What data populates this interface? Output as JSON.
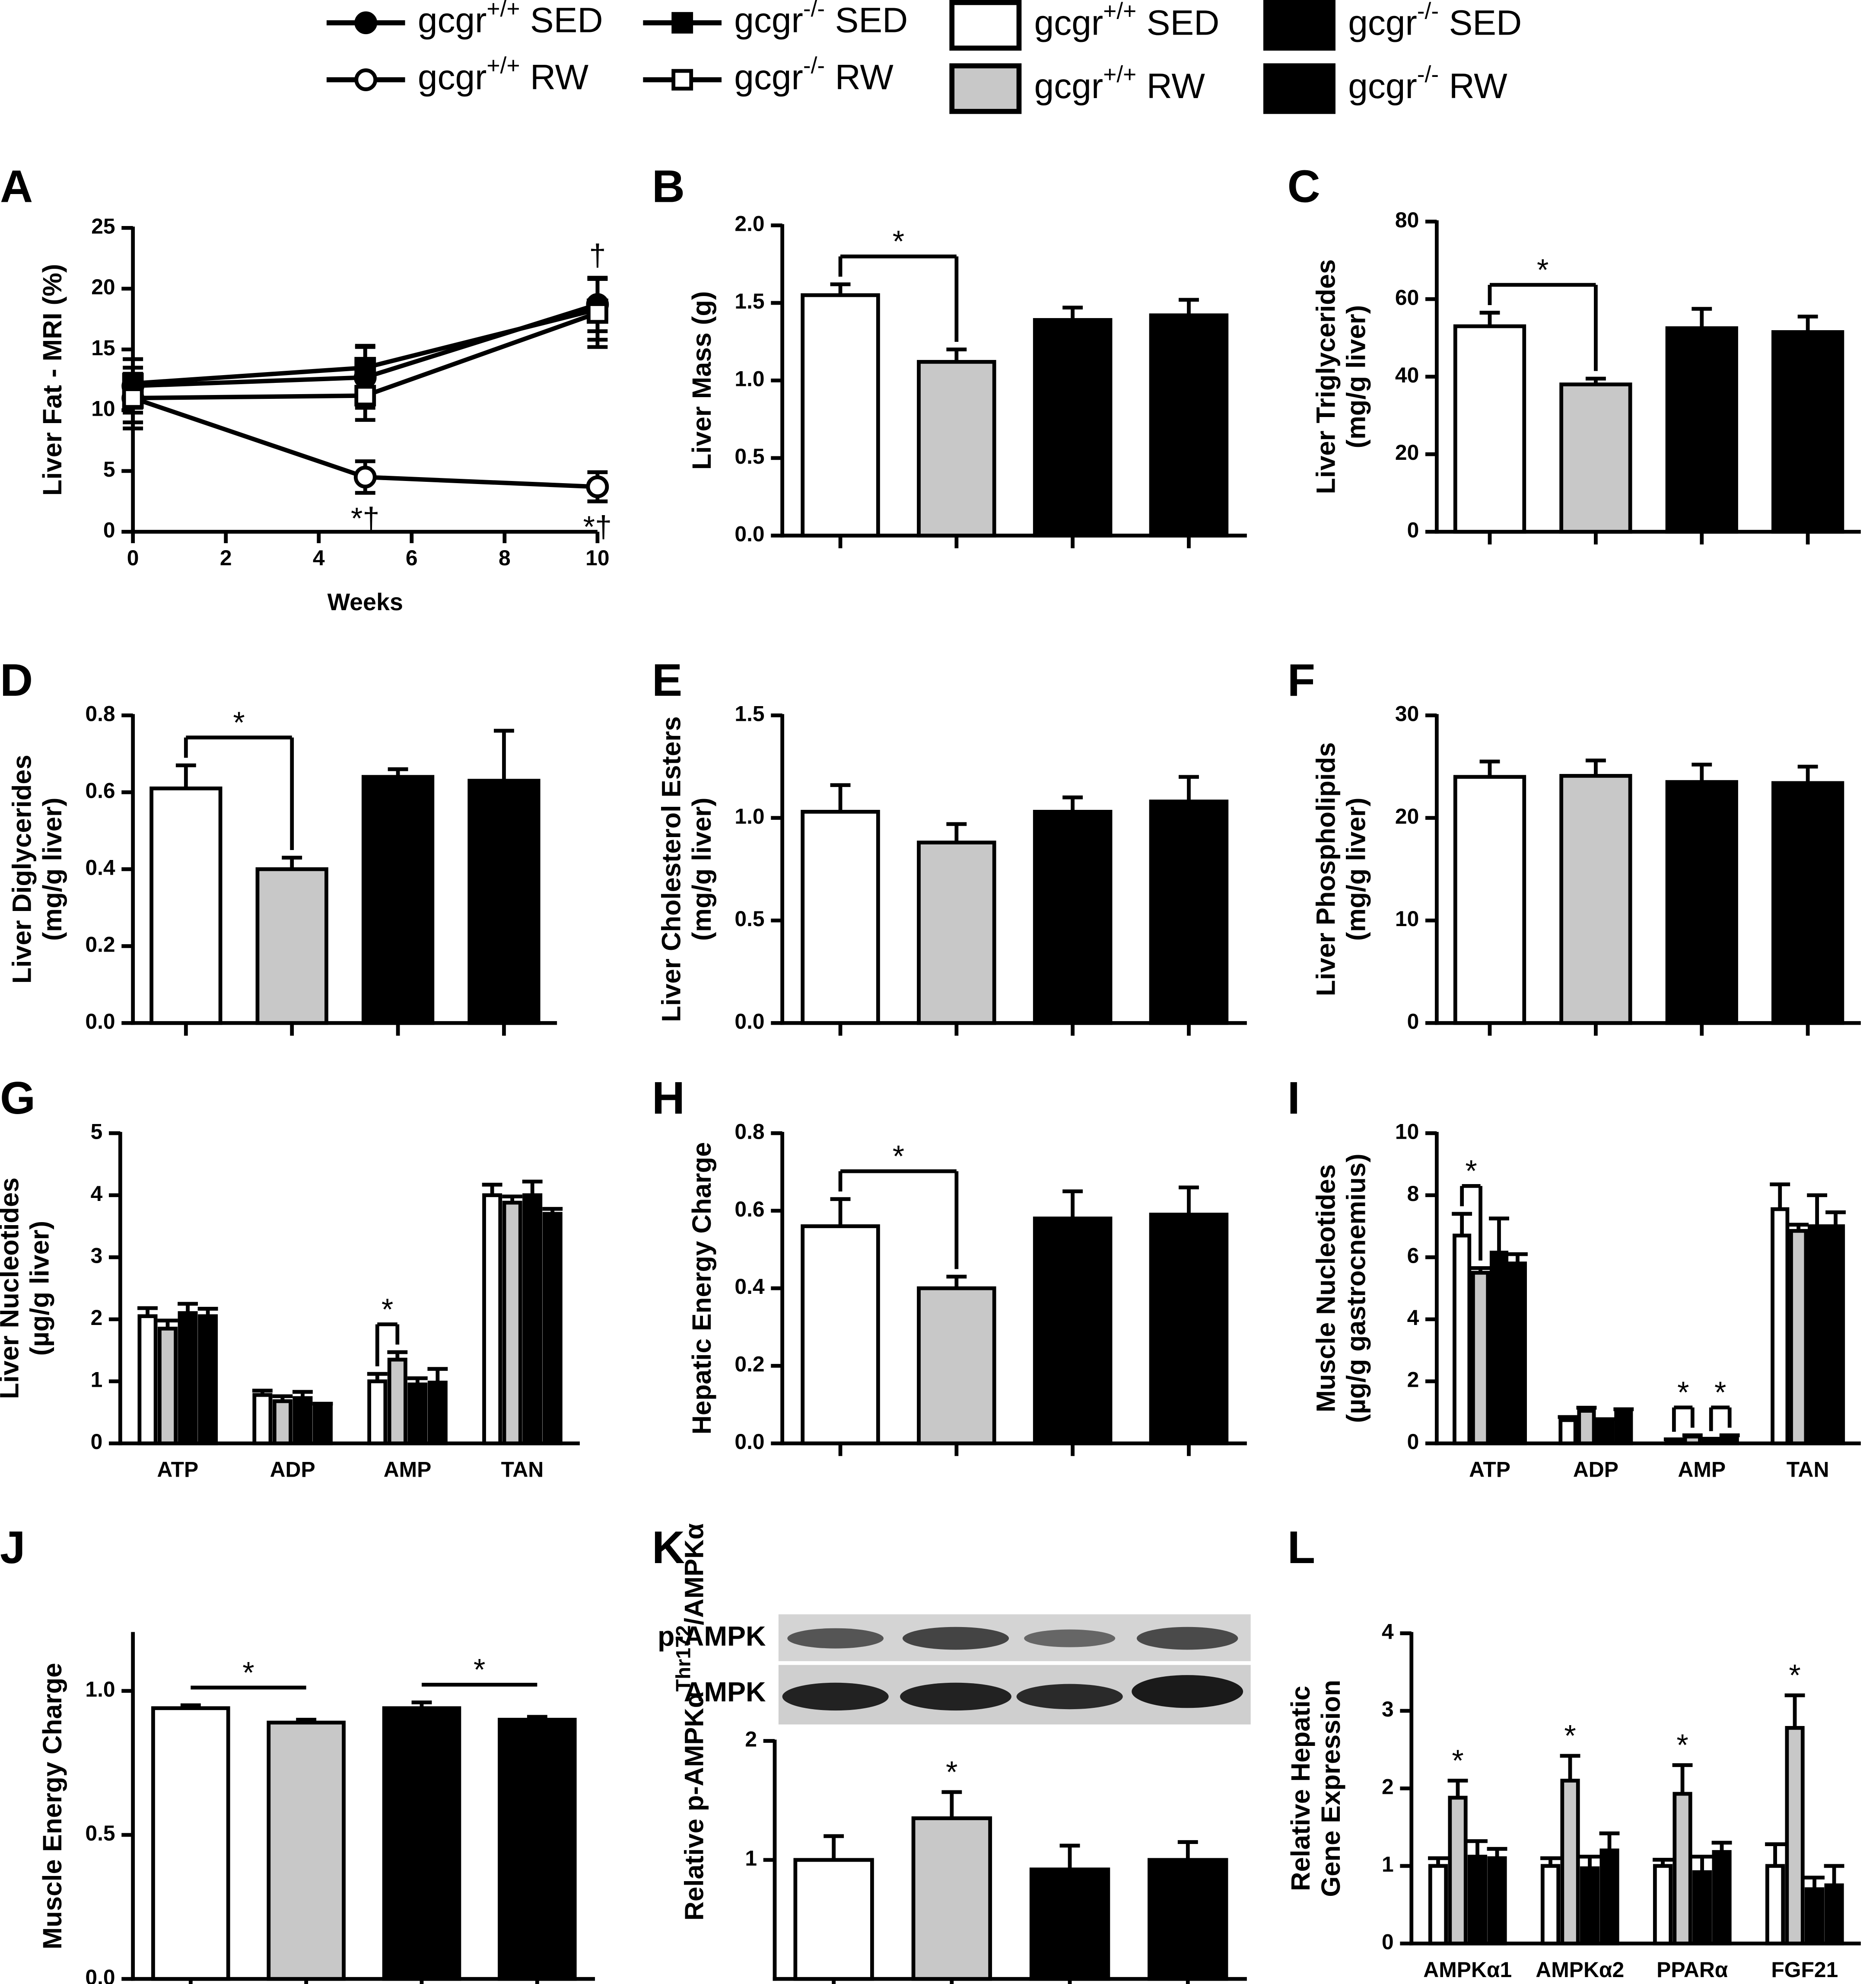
{
  "legend": {
    "bars": [
      {
        "base": "gcgr",
        "sup": "+/+",
        "cond": "SED",
        "fill": "#ffffff"
      },
      {
        "base": "gcgr",
        "sup": "+/+",
        "cond": "RW",
        "fill": "#c8c8c8"
      },
      {
        "base": "gcgr",
        "sup": "-/-",
        "cond": "SED",
        "fill": "#000000"
      },
      {
        "base": "gcgr",
        "sup": "-/-",
        "cond": "RW",
        "fill": "#000000"
      }
    ]
  },
  "chart_data": [
    {
      "type": "line",
      "panel": "A",
      "y_label": [
        "Liver Fat - MRI (%)"
      ],
      "x_label": "Weeks",
      "x": [
        0,
        5,
        10
      ],
      "xlim": [
        0,
        10
      ],
      "xticks": [
        0,
        2,
        4,
        6,
        8,
        10
      ],
      "ylim": [
        0,
        25
      ],
      "yticks": [
        0,
        5,
        10,
        15,
        20,
        25
      ],
      "series": [
        {
          "name": {
            "base": "gcgr",
            "sup": "+/+",
            "cond": "SED"
          },
          "color": "#000000",
          "marker": "circle",
          "filled": true,
          "values": [
            12,
            12.7,
            18.7
          ],
          "errors": [
            2.2,
            2.5,
            2.2
          ]
        },
        {
          "name": {
            "base": "gcgr",
            "sup": "-/-",
            "cond": "SED"
          },
          "color": "#000000",
          "marker": "square",
          "filled": true,
          "values": [
            12.2,
            13.5,
            18.3
          ],
          "errors": [
            2,
            1.8,
            2.5
          ]
        },
        {
          "name": {
            "base": "gcgr",
            "sup": "+/+",
            "cond": "RW"
          },
          "color": "#000000",
          "marker": "circle",
          "filled": false,
          "values": [
            11,
            4.5,
            3.7
          ],
          "errors": [
            2,
            1.3,
            1.2
          ]
        },
        {
          "name": {
            "base": "gcgr",
            "sup": "-/-",
            "cond": "RW"
          },
          "color": "#000000",
          "marker": "square",
          "filled": false,
          "values": [
            11,
            11.2,
            18
          ],
          "errors": [
            2.5,
            2,
            2.8
          ]
        }
      ],
      "annotations": [
        {
          "text": "†",
          "x": 10,
          "series": 0
        },
        {
          "text": "*†",
          "x": 5,
          "series": 2
        },
        {
          "text": "*†",
          "x": 10,
          "series": 2
        }
      ]
    },
    {
      "type": "bar",
      "panel": "B",
      "y_label": [
        "Liver Mass (g)"
      ],
      "ylim": [
        0,
        2
      ],
      "yticks": [
        {
          "value": 0,
          "label": "0.0"
        },
        0.5,
        {
          "value": 1,
          "label": "1.0"
        },
        1.5,
        {
          "value": 2,
          "label": "2.0"
        }
      ],
      "values": [
        1.55,
        1.12,
        1.39,
        1.42
      ],
      "errors": [
        0.07,
        0.08,
        0.08,
        0.1
      ],
      "significance": [
        {
          "label": "*",
          "groups": [
            0,
            1
          ]
        }
      ]
    },
    {
      "type": "bar",
      "panel": "C",
      "y_label": [
        "Liver Triglycerides",
        "(mg/g liver)"
      ],
      "ylim": [
        0,
        80
      ],
      "yticks": [
        0,
        20,
        40,
        60,
        80
      ],
      "values": [
        53,
        38,
        52.5,
        51.5
      ],
      "errors": [
        3.5,
        1.5,
        5,
        4
      ],
      "significance": [
        {
          "label": "*",
          "groups": [
            0,
            1
          ]
        }
      ]
    },
    {
      "type": "bar",
      "panel": "D",
      "y_label": [
        "Liver Diglycerides",
        "(mg/g liver)"
      ],
      "ylim": [
        0,
        0.8
      ],
      "yticks": [
        {
          "value": 0,
          "label": "0.0"
        },
        0.2,
        0.4,
        0.6,
        0.8
      ],
      "values": [
        0.61,
        0.4,
        0.64,
        0.63
      ],
      "errors": [
        0.06,
        0.03,
        0.02,
        0.13
      ],
      "significance": [
        {
          "label": "*",
          "groups": [
            0,
            1
          ]
        }
      ]
    },
    {
      "type": "bar",
      "panel": "E",
      "y_label": [
        "Liver Cholesterol Esters",
        "(mg/g liver)"
      ],
      "ylim": [
        0,
        1.5
      ],
      "yticks": [
        {
          "value": 0,
          "label": "0.0"
        },
        0.5,
        {
          "value": 1,
          "label": "1.0"
        },
        1.5
      ],
      "values": [
        1.03,
        0.88,
        1.03,
        1.08
      ],
      "errors": [
        0.13,
        0.09,
        0.07,
        0.12
      ]
    },
    {
      "type": "bar",
      "panel": "F",
      "y_label": [
        "Liver Phospholipids",
        "(mg/g liver)"
      ],
      "ylim": [
        0,
        30
      ],
      "yticks": [
        0,
        10,
        20,
        30
      ],
      "values": [
        24,
        24.1,
        23.5,
        23.4
      ],
      "errors": [
        1.5,
        1.5,
        1.7,
        1.6
      ]
    },
    {
      "type": "grouped_bar",
      "panel": "G",
      "y_label": [
        "Liver Nucleotides",
        "(µg/g liver)"
      ],
      "ylim": [
        0,
        5
      ],
      "yticks": [
        0,
        1,
        2,
        3,
        4,
        5
      ],
      "categories": [
        "ATP",
        "ADP",
        "AMP",
        "TAN"
      ],
      "series": [
        {
          "values": [
            2.05,
            0.78,
            1.0,
            4.0
          ],
          "errors": [
            0.13,
            0.07,
            0.12,
            0.17
          ]
        },
        {
          "values": [
            1.85,
            0.68,
            1.35,
            3.88
          ],
          "errors": [
            0.13,
            0.08,
            0.12,
            0.1
          ]
        },
        {
          "values": [
            2.1,
            0.73,
            0.95,
            4.0
          ],
          "errors": [
            0.15,
            0.1,
            0.1,
            0.22
          ]
        },
        {
          "values": [
            2.05,
            0.62,
            0.98,
            3.7
          ],
          "errors": [
            0.12,
            0.02,
            0.22,
            0.08
          ]
        }
      ],
      "significance": [
        {
          "label": "*",
          "category": 2,
          "groups": [
            0,
            1
          ]
        }
      ]
    },
    {
      "type": "bar",
      "panel": "H",
      "y_label": [
        "Hepatic Energy Charge"
      ],
      "ylim": [
        0,
        0.8
      ],
      "yticks": [
        {
          "value": 0,
          "label": "0.0"
        },
        0.2,
        0.4,
        0.6,
        0.8
      ],
      "values": [
        0.56,
        0.4,
        0.58,
        0.59
      ],
      "errors": [
        0.07,
        0.03,
        0.07,
        0.07
      ],
      "significance": [
        {
          "label": "*",
          "groups": [
            0,
            1
          ]
        }
      ]
    },
    {
      "type": "grouped_bar",
      "panel": "I",
      "y_label": [
        "Muscle Nucleotides",
        "(µg/g gastrocnemius)"
      ],
      "ylim": [
        0,
        10
      ],
      "yticks": [
        0,
        2,
        4,
        6,
        8,
        10
      ],
      "categories": [
        "ATP",
        "ADP",
        "AMP",
        "TAN"
      ],
      "series": [
        {
          "values": [
            6.7,
            0.75,
            0.1,
            7.55
          ],
          "errors": [
            0.7,
            0.1,
            0.03,
            0.8
          ]
        },
        {
          "values": [
            5.5,
            1.05,
            0.22,
            6.85
          ],
          "errors": [
            0.15,
            0.1,
            0.04,
            0.2
          ]
        },
        {
          "values": [
            6.15,
            0.7,
            0.12,
            7.0
          ],
          "errors": [
            1.1,
            0.08,
            0.03,
            1.0
          ]
        },
        {
          "values": [
            5.8,
            1.0,
            0.22,
            7.0
          ],
          "errors": [
            0.3,
            0.1,
            0.04,
            0.45
          ]
        }
      ],
      "significance": [
        {
          "label": "*",
          "category": 0,
          "groups": [
            0,
            1
          ]
        },
        {
          "label": "*",
          "category": 2,
          "groups": [
            0,
            1
          ]
        },
        {
          "label": "*",
          "category": 2,
          "groups": [
            2,
            3
          ]
        }
      ]
    },
    {
      "type": "bar",
      "panel": "J",
      "y_label": [
        "Muscle Energy Charge"
      ],
      "ylim": [
        0,
        1.2
      ],
      "yticks": [
        {
          "value": 0,
          "label": "0.0"
        },
        0.5,
        {
          "value": 1,
          "label": "1.0"
        }
      ],
      "values": [
        0.94,
        0.89,
        0.94,
        0.9
      ],
      "errors": [
        0.01,
        0.01,
        0.02,
        0.01
      ],
      "significance": [
        {
          "label": "*",
          "groups": [
            0,
            1
          ],
          "bracket": false
        },
        {
          "label": "*",
          "groups": [
            2,
            3
          ],
          "bracket": false
        }
      ]
    },
    {
      "type": "bar",
      "panel": "K",
      "y_label": [
        "Relative p-AMPKα"
      ],
      "y_label_sup": "Thr172",
      "y_label_tail": "/AMPKα",
      "blot_labels": [
        "p-AMPK",
        "AMPK"
      ],
      "ylim": [
        0,
        2
      ],
      "yticks": [
        1,
        2
      ],
      "values": [
        1.0,
        1.35,
        0.92,
        1.0
      ],
      "errors": [
        0.2,
        0.22,
        0.2,
        0.15
      ],
      "significance": [
        {
          "label": "*",
          "group": 1
        }
      ]
    },
    {
      "type": "grouped_bar",
      "panel": "L",
      "y_label": [
        "Relative Hepatic",
        "Gene Expression"
      ],
      "ylim": [
        0,
        4
      ],
      "yticks": [
        0,
        1,
        2,
        3,
        4
      ],
      "categories": [
        "AMPKα1",
        "AMPKα2",
        "PPARα",
        "FGF21"
      ],
      "series": [
        {
          "values": [
            1.0,
            1.0,
            1.0,
            1.0
          ],
          "errors": [
            0.1,
            0.1,
            0.08,
            0.28
          ]
        },
        {
          "values": [
            1.88,
            2.1,
            1.93,
            2.78
          ],
          "errors": [
            0.22,
            0.32,
            0.37,
            0.42
          ]
        },
        {
          "values": [
            1.12,
            0.97,
            0.92,
            0.7
          ],
          "errors": [
            0.2,
            0.15,
            0.2,
            0.15
          ]
        },
        {
          "values": [
            1.1,
            1.2,
            1.18,
            0.75
          ],
          "errors": [
            0.12,
            0.22,
            0.12,
            0.25
          ]
        }
      ],
      "significance": [
        {
          "label": "*",
          "category": 0,
          "group": 1
        },
        {
          "label": "*",
          "category": 1,
          "group": 1
        },
        {
          "label": "*",
          "category": 2,
          "group": 1
        },
        {
          "label": "*",
          "category": 3,
          "group": 1
        }
      ]
    }
  ]
}
